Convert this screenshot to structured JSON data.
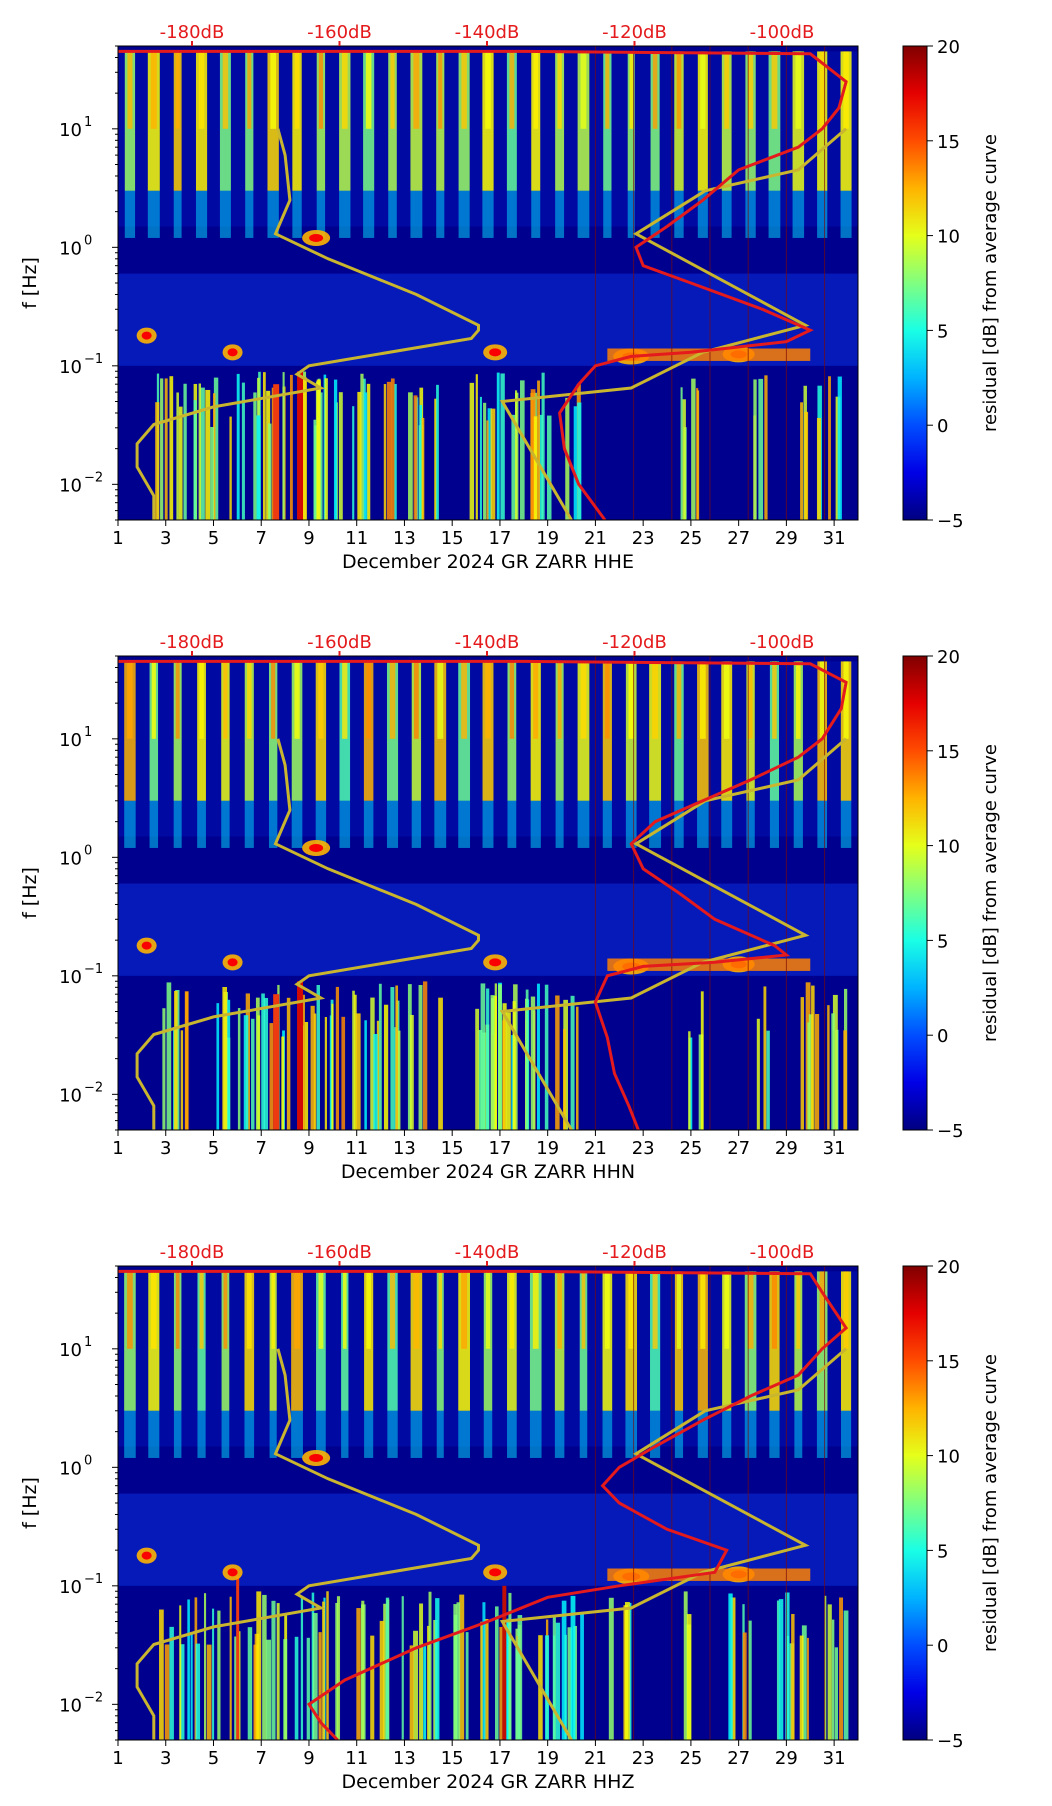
{
  "chart_data": [
    {
      "type": "heatmap",
      "xlabel": "December 2024 GR ZARR  HHE",
      "ylabel": "f [Hz]",
      "x_ticks": [
        "1",
        "3",
        "5",
        "7",
        "9",
        "11",
        "13",
        "15",
        "17",
        "19",
        "21",
        "23",
        "25",
        "27",
        "29",
        "31"
      ],
      "y_ticks": [
        "10^1",
        "10^0",
        "10^-1",
        "10^-2"
      ],
      "top_labels": [
        "-180dB",
        "-160dB",
        "-140dB",
        "-120dB",
        "-100dB"
      ],
      "colorbar": {
        "label": "residual [dB] from average curve",
        "ticks": [
          "20",
          "15",
          "10",
          "5",
          "0",
          "−5"
        ],
        "range": [
          -5,
          20
        ]
      },
      "ylim": [
        0.005,
        50
      ],
      "xlim": [
        1,
        32
      ],
      "yscale": "log",
      "background_color": "#00008f",
      "curve_colors": {
        "noise_model": "#c9b62e",
        "noise_level": "#e41a1c"
      },
      "noise_model_curve": [
        [
          2.5,
          0.005
        ],
        [
          2.5,
          0.008
        ],
        [
          1.8,
          0.014
        ],
        [
          1.8,
          0.022
        ],
        [
          2.5,
          0.032
        ],
        [
          5,
          0.045
        ],
        [
          9.5,
          0.065
        ],
        [
          8.5,
          0.085
        ],
        [
          9,
          0.1
        ],
        [
          15.8,
          0.17
        ],
        [
          16.1,
          0.2
        ],
        [
          16.1,
          0.22
        ],
        [
          13.5,
          0.4
        ],
        [
          9.8,
          0.8
        ],
        [
          7.6,
          1.3
        ],
        [
          8.2,
          2.5
        ],
        [
          8,
          6
        ],
        [
          7.7,
          10
        ]
      ],
      "noise_model_curve_right": [
        [
          20,
          0.005
        ],
        [
          17.1,
          0.05
        ],
        [
          22.5,
          0.065
        ],
        [
          25.5,
          0.13
        ],
        [
          29.8,
          0.22
        ],
        [
          22.7,
          1.3
        ],
        [
          25.6,
          3
        ],
        [
          29.5,
          4.5
        ],
        [
          31.5,
          10
        ]
      ],
      "noise_level_curve": [
        [
          21.4,
          0.005
        ],
        [
          20.3,
          0.01
        ],
        [
          19.7,
          0.02
        ],
        [
          19.5,
          0.04
        ],
        [
          20.3,
          0.07
        ],
        [
          21,
          0.1
        ],
        [
          22.5,
          0.12
        ],
        [
          25,
          0.13
        ],
        [
          29,
          0.16
        ],
        [
          30,
          0.2
        ],
        [
          28,
          0.3
        ],
        [
          25,
          0.5
        ],
        [
          23,
          0.7
        ],
        [
          22.7,
          1
        ],
        [
          24,
          1.5
        ],
        [
          25.5,
          2.5
        ],
        [
          27,
          4.5
        ],
        [
          29.5,
          7
        ],
        [
          30.5,
          10
        ],
        [
          31.2,
          15
        ],
        [
          31.5,
          25
        ],
        [
          30,
          43
        ],
        [
          18,
          45
        ],
        [
          1,
          45
        ]
      ]
    },
    {
      "type": "heatmap",
      "xlabel": "December 2024 GR ZARR  HHN",
      "ylabel": "f [Hz]",
      "x_ticks": [
        "1",
        "3",
        "5",
        "7",
        "9",
        "11",
        "13",
        "15",
        "17",
        "19",
        "21",
        "23",
        "25",
        "27",
        "29",
        "31"
      ],
      "y_ticks": [
        "10^1",
        "10^0",
        "10^-1",
        "10^-2"
      ],
      "top_labels": [
        "-180dB",
        "-160dB",
        "-140dB",
        "-120dB",
        "-100dB"
      ],
      "colorbar": {
        "label": "residual [dB] from average curve",
        "ticks": [
          "20",
          "15",
          "10",
          "5",
          "0",
          "−5"
        ],
        "range": [
          -5,
          20
        ]
      },
      "ylim": [
        0.005,
        50
      ],
      "xlim": [
        1,
        32
      ],
      "yscale": "log",
      "background_color": "#00008f",
      "curve_colors": {
        "noise_model": "#c9b62e",
        "noise_level": "#e41a1c"
      },
      "noise_model_curve": [
        [
          2.5,
          0.005
        ],
        [
          2.5,
          0.008
        ],
        [
          1.8,
          0.014
        ],
        [
          1.8,
          0.022
        ],
        [
          2.5,
          0.032
        ],
        [
          5,
          0.045
        ],
        [
          9.5,
          0.065
        ],
        [
          8.5,
          0.085
        ],
        [
          9,
          0.1
        ],
        [
          15.8,
          0.17
        ],
        [
          16.1,
          0.2
        ],
        [
          16.1,
          0.22
        ],
        [
          13.5,
          0.4
        ],
        [
          9.8,
          0.8
        ],
        [
          7.6,
          1.3
        ],
        [
          8.2,
          2.5
        ],
        [
          8,
          6
        ],
        [
          7.7,
          10
        ]
      ],
      "noise_model_curve_right": [
        [
          20,
          0.005
        ],
        [
          17.1,
          0.05
        ],
        [
          22.5,
          0.065
        ],
        [
          25.5,
          0.13
        ],
        [
          29.8,
          0.22
        ],
        [
          22.7,
          1.3
        ],
        [
          25.6,
          3
        ],
        [
          29.5,
          4.5
        ],
        [
          31.5,
          10
        ]
      ],
      "noise_level_curve": [
        [
          22.8,
          0.005
        ],
        [
          22.4,
          0.008
        ],
        [
          21.8,
          0.015
        ],
        [
          21.5,
          0.03
        ],
        [
          21,
          0.06
        ],
        [
          21.5,
          0.1
        ],
        [
          23,
          0.12
        ],
        [
          26,
          0.13
        ],
        [
          29,
          0.15
        ],
        [
          28.5,
          0.18
        ],
        [
          26,
          0.3
        ],
        [
          24.5,
          0.5
        ],
        [
          23,
          0.8
        ],
        [
          22.5,
          1.3
        ],
        [
          23.5,
          2
        ],
        [
          25.5,
          3
        ],
        [
          27.5,
          4.5
        ],
        [
          29.5,
          7
        ],
        [
          30.5,
          10
        ],
        [
          31.3,
          18
        ],
        [
          31.5,
          30
        ],
        [
          30,
          43
        ],
        [
          18,
          45
        ],
        [
          1,
          45
        ]
      ]
    },
    {
      "type": "heatmap",
      "xlabel": "December 2024 GR ZARR  HHZ",
      "ylabel": "f [Hz]",
      "x_ticks": [
        "1",
        "3",
        "5",
        "7",
        "9",
        "11",
        "13",
        "15",
        "17",
        "19",
        "21",
        "23",
        "25",
        "27",
        "29",
        "31"
      ],
      "y_ticks": [
        "10^1",
        "10^0",
        "10^-1",
        "10^-2"
      ],
      "top_labels": [
        "-180dB",
        "-160dB",
        "-140dB",
        "-120dB",
        "-100dB"
      ],
      "colorbar": {
        "label": "residual [dB] from average curve",
        "ticks": [
          "20",
          "15",
          "10",
          "5",
          "0",
          "−5"
        ],
        "range": [
          -5,
          20
        ]
      },
      "ylim": [
        0.005,
        50
      ],
      "xlim": [
        1,
        32
      ],
      "yscale": "log",
      "background_color": "#00008f",
      "curve_colors": {
        "noise_model": "#c9b62e",
        "noise_level": "#e41a1c"
      },
      "noise_model_curve": [
        [
          2.5,
          0.005
        ],
        [
          2.5,
          0.008
        ],
        [
          1.8,
          0.014
        ],
        [
          1.8,
          0.022
        ],
        [
          2.5,
          0.032
        ],
        [
          5,
          0.045
        ],
        [
          9.5,
          0.065
        ],
        [
          8.5,
          0.085
        ],
        [
          9,
          0.1
        ],
        [
          15.8,
          0.17
        ],
        [
          16.1,
          0.2
        ],
        [
          16.1,
          0.22
        ],
        [
          13.5,
          0.4
        ],
        [
          9.8,
          0.8
        ],
        [
          7.6,
          1.3
        ],
        [
          8.2,
          2.5
        ],
        [
          8,
          6
        ],
        [
          7.7,
          10
        ]
      ],
      "noise_model_curve_right": [
        [
          20,
          0.005
        ],
        [
          17.1,
          0.05
        ],
        [
          22.5,
          0.065
        ],
        [
          25.5,
          0.13
        ],
        [
          29.8,
          0.22
        ],
        [
          22.7,
          1.3
        ],
        [
          25.6,
          3
        ],
        [
          29.5,
          4.5
        ],
        [
          31.5,
          10
        ]
      ],
      "noise_level_curve": [
        [
          10.2,
          0.005
        ],
        [
          9.5,
          0.007
        ],
        [
          9,
          0.01
        ],
        [
          10.5,
          0.016
        ],
        [
          13.5,
          0.03
        ],
        [
          16.5,
          0.05
        ],
        [
          19,
          0.08
        ],
        [
          22,
          0.1
        ],
        [
          26,
          0.13
        ],
        [
          26.5,
          0.2
        ],
        [
          24,
          0.3
        ],
        [
          22,
          0.5
        ],
        [
          21.3,
          0.7
        ],
        [
          22,
          1
        ],
        [
          23.5,
          1.5
        ],
        [
          25.5,
          2.5
        ],
        [
          27.5,
          4
        ],
        [
          29.5,
          6
        ],
        [
          30.5,
          10
        ],
        [
          31.5,
          15
        ],
        [
          30.5,
          30
        ],
        [
          30,
          43
        ],
        [
          18,
          45
        ],
        [
          1,
          45
        ]
      ]
    }
  ]
}
